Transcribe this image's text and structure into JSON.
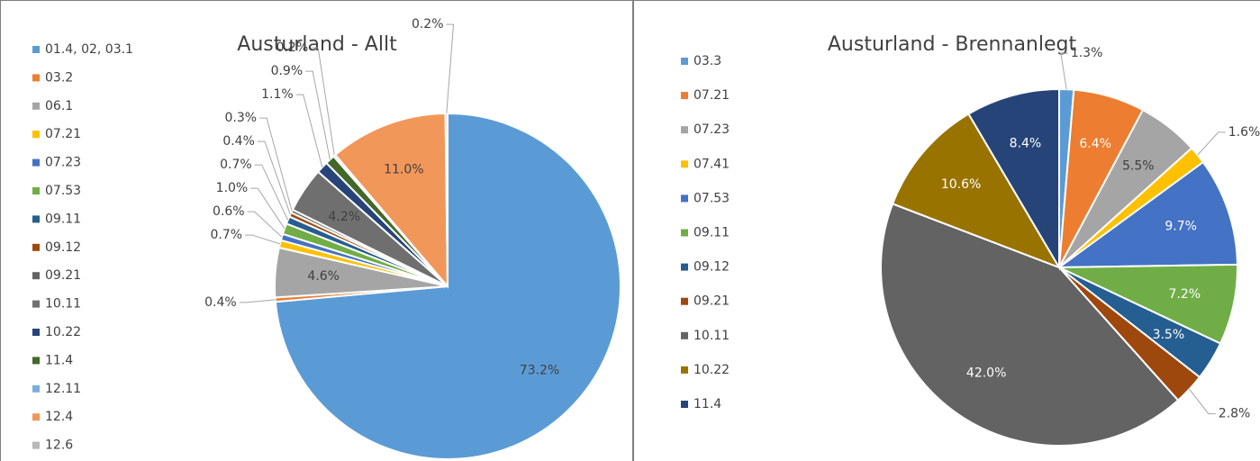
{
  "chart_data": [
    {
      "type": "pie",
      "title": "Austurland - Allt",
      "categories": [
        "01.4, 02, 03.1",
        "03.2",
        "06.1",
        "07.21",
        "07.23",
        "07.53",
        "09.11",
        "09.12",
        "09.21",
        "10.11",
        "10.22",
        "11.4",
        "12.11",
        "12.4",
        "12.6"
      ],
      "values": [
        73.2,
        0.4,
        4.6,
        0.7,
        0.6,
        1.0,
        0.7,
        0.4,
        0.3,
        4.2,
        1.1,
        0.9,
        0.2,
        11.0,
        0.2
      ],
      "value_labels": [
        "73.2%",
        "0.4%",
        "4.6%",
        "0.7%",
        "0.6%",
        "1.0%",
        "0.7%",
        "0.4%",
        "0.3%",
        "4.2%",
        "1.1%",
        "0.9%",
        "0.2%",
        "11.0%",
        "0.2%"
      ],
      "colors": [
        "#5b9bd5",
        "#ed7d31",
        "#a5a5a5",
        "#ffc000",
        "#4472c4",
        "#70ad47",
        "#255e91",
        "#9e480e",
        "#636363",
        "#6f6f6f",
        "#264478",
        "#43682b",
        "#7cafdd",
        "#f1975a",
        "#b7b7b7"
      ],
      "legend": "left"
    },
    {
      "type": "pie",
      "title": "Austurland - Brennanlegt",
      "categories": [
        "03.3",
        "07.21",
        "07.23",
        "07.41",
        "07.53",
        "09.11",
        "09.12",
        "09.21",
        "10.11",
        "10.22",
        "11.4"
      ],
      "values": [
        1.3,
        6.4,
        5.5,
        1.6,
        9.7,
        7.2,
        3.5,
        2.8,
        42.0,
        10.6,
        8.4
      ],
      "value_labels": [
        "1.3%",
        "6.4%",
        "5.5%",
        "1.6%",
        "9.7%",
        "7.2%",
        "3.5%",
        "2.8%",
        "42.0%",
        "10.6%",
        "8.4%"
      ],
      "colors": [
        "#5b9bd5",
        "#ed7d31",
        "#a5a5a5",
        "#ffc000",
        "#4472c4",
        "#70ad47",
        "#255e91",
        "#9e480e",
        "#636363",
        "#997300",
        "#264478"
      ],
      "legend": "left"
    }
  ]
}
